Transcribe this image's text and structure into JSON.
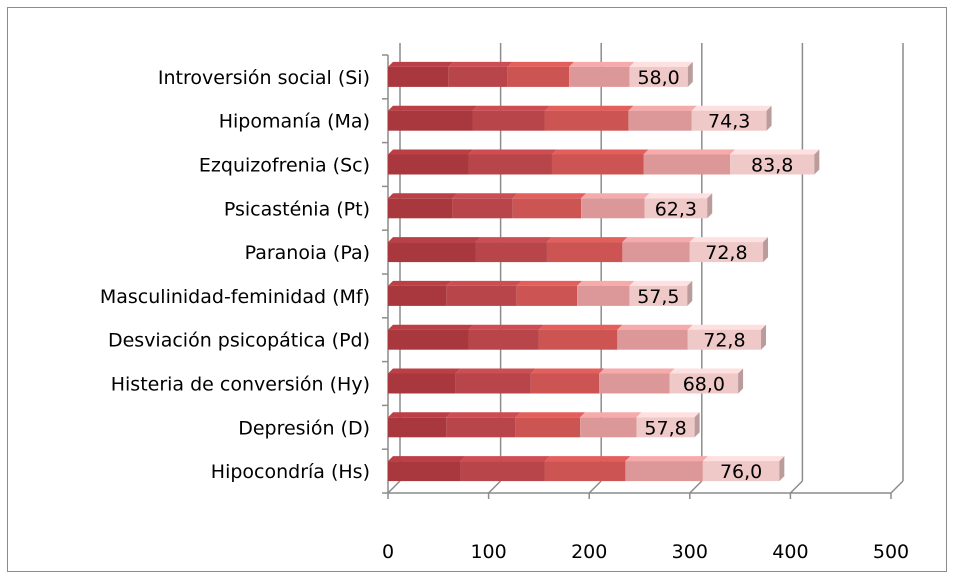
{
  "chart_data": {
    "type": "bar",
    "orientation": "horizontal",
    "stacked": true,
    "three_d": true,
    "title": "",
    "xlabel": "",
    "ylabel": "",
    "xlim": [
      0,
      500
    ],
    "x_ticks": [
      "0",
      "100",
      "200",
      "300",
      "400",
      "500"
    ],
    "grid": "vertical",
    "legend": "none",
    "categories": [
      "Introversión social   (Si)",
      "Hipomanía  (Ma)",
      "Ezquizofrenia   (Sc)",
      "Psicasténia   (Pt)",
      "Paranoia   (Pa)",
      "Masculinidad-feminidad  (Mf)",
      "Desviación psicopática   (Pd)",
      "Histeria de conversión   (Hy)",
      "Depresión  (D)",
      "Hipocondría   (Hs)"
    ],
    "series": [
      {
        "values": [
          60,
          84,
          80,
          64,
          87,
          58,
          80,
          67,
          58,
          72
        ]
      },
      {
        "values": [
          59,
          72,
          83,
          60,
          71,
          70,
          70,
          75,
          69,
          84
        ]
      },
      {
        "values": [
          61,
          83,
          91,
          68,
          75,
          60,
          78,
          68,
          64,
          80
        ]
      },
      {
        "values": [
          60,
          63,
          86,
          63,
          67,
          52,
          70,
          70,
          56,
          77
        ]
      },
      {
        "values": [
          58.0,
          74.3,
          83.8,
          62.3,
          72.8,
          57.5,
          72.8,
          68.0,
          57.8,
          76.0
        ]
      }
    ],
    "data_labels": [
      "58,0",
      "74,3",
      "83,8",
      "62,3",
      "72,8",
      "57,5",
      "72,8",
      "68,0",
      "57,8",
      "76,0"
    ],
    "colors": [
      "#a8383e",
      "#b84549",
      "#cc5452",
      "#dc9898",
      "#efc8c8"
    ]
  }
}
